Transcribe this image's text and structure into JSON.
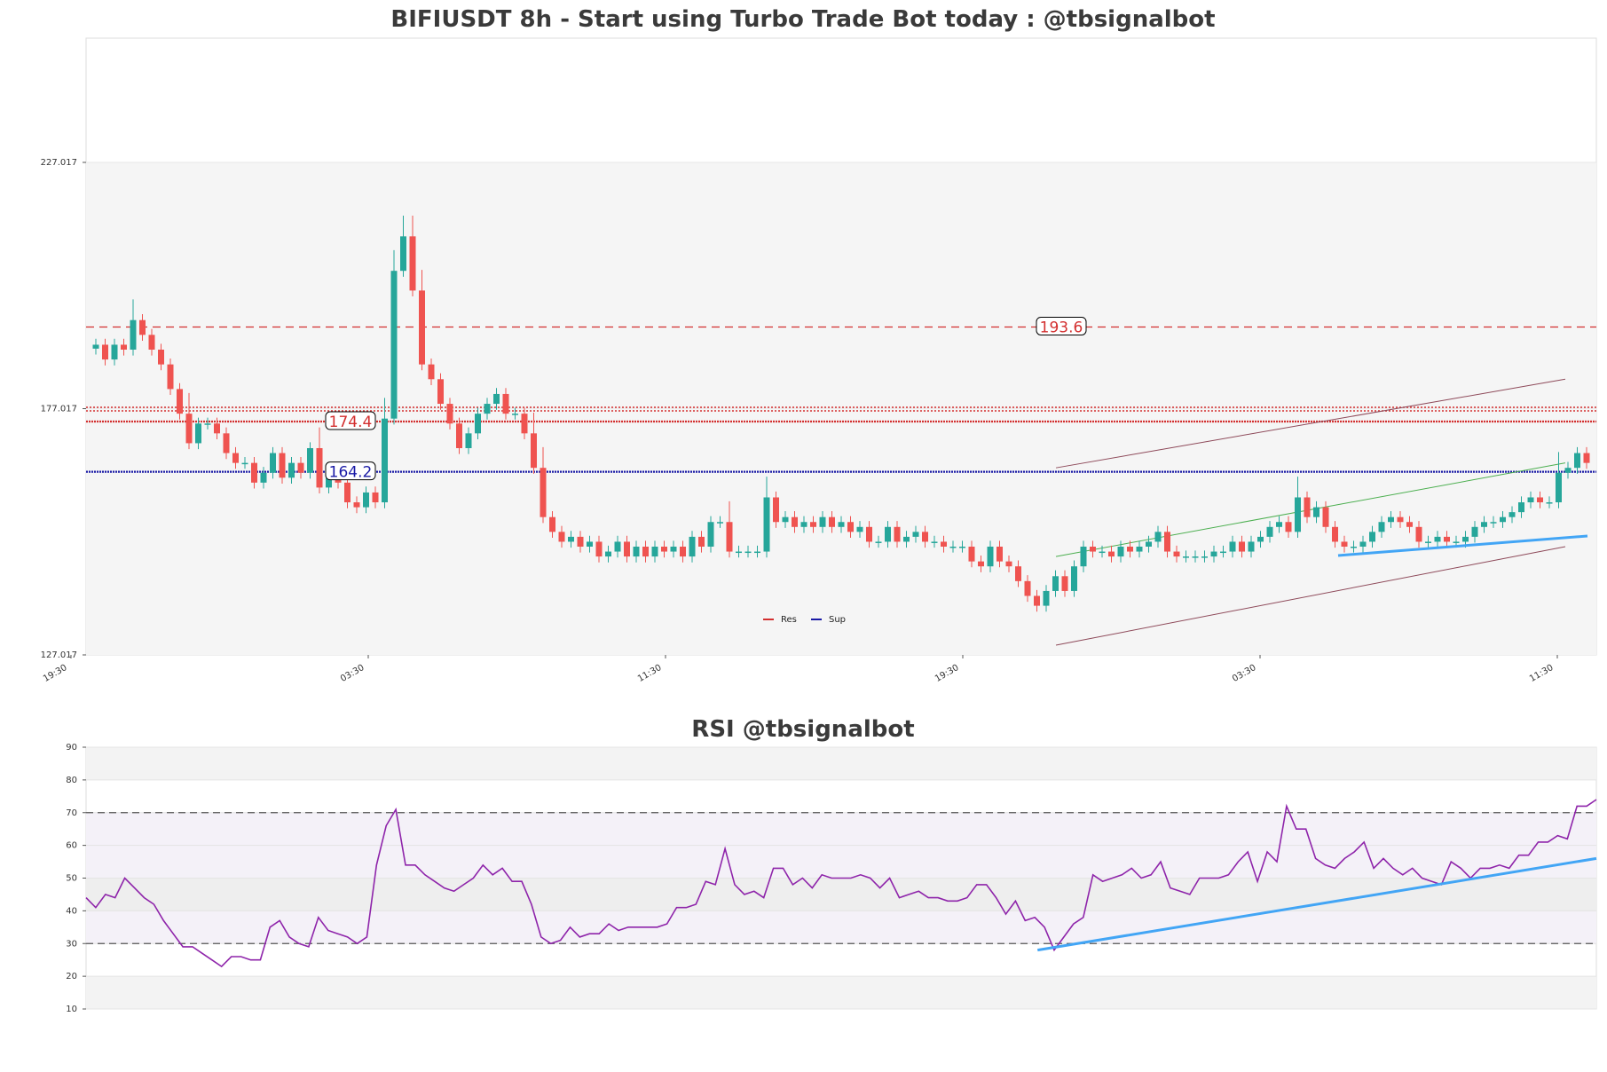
{
  "title": "BIFIUSDT 8h - Start using Turbo Trade Bot today : @tbsignalbot",
  "rsi_title": "RSI @tbsignalbot",
  "colors": {
    "up": "#26a69a",
    "down": "#ef5350",
    "res": "#d32f2f",
    "sup": "#1a1aa6",
    "rsi": "#8e24aa",
    "trend": "#42a5f5"
  },
  "chart_data": [
    {
      "type": "candlestick",
      "title": "BIFIUSDT 8h - Start using Turbo Trade Bot today : @tbsignalbot",
      "ylim": [
        127.017,
        227.017
      ],
      "y_ticks": [
        "127.017",
        "177.017",
        "227.017"
      ],
      "x_tick_labels": [
        "19:30",
        "03:30",
        "11:30",
        "19:30",
        "03:30",
        "11:30"
      ],
      "levels": [
        {
          "label": "193.6",
          "value": 193.6,
          "kind": "res"
        },
        {
          "label": "174.4",
          "value": 174.4,
          "kind": "res"
        },
        {
          "label": "164.2",
          "value": 164.2,
          "kind": "sup"
        }
      ],
      "legend": {
        "placement": "bottom-center",
        "entries": [
          "Res",
          "Sup"
        ]
      },
      "series": [
        {
          "name": "close",
          "values": [
            190,
            187,
            190,
            189,
            195,
            192,
            189,
            186,
            181,
            176,
            170,
            174,
            174,
            172,
            168,
            166,
            166,
            162,
            164,
            168,
            163,
            166,
            164,
            169,
            161,
            163,
            162,
            158,
            157,
            160,
            158,
            175,
            205,
            212,
            201,
            186,
            183,
            178,
            174,
            169,
            172,
            176,
            178,
            180,
            176,
            176,
            172,
            165,
            155,
            152,
            150,
            151,
            149,
            150,
            147,
            148,
            150,
            147,
            149,
            147,
            149,
            148,
            149,
            147,
            151,
            149,
            154,
            154,
            148,
            148,
            148,
            148,
            159,
            154,
            155,
            153,
            154,
            153,
            155,
            153,
            154,
            152,
            153,
            150,
            150,
            153,
            150,
            151,
            152,
            150,
            150,
            149,
            149,
            149,
            146,
            145,
            149,
            146,
            145,
            142,
            139,
            137,
            140,
            143,
            140,
            145,
            149,
            148,
            148,
            147,
            149,
            148,
            149,
            150,
            152,
            148,
            147,
            147,
            147,
            147,
            148,
            148,
            150,
            148,
            150,
            151,
            153,
            154,
            152,
            159,
            155,
            157,
            153,
            150,
            149,
            149,
            150,
            152,
            154,
            155,
            154,
            153,
            150,
            150,
            151,
            150,
            150,
            151,
            153,
            154,
            154,
            155,
            156,
            158,
            159,
            158,
            158,
            164,
            165,
            168,
            166
          ]
        }
      ],
      "channels": [
        {
          "name": "upper",
          "x": [
            0,
            1
          ],
          "y": [
            165,
            183
          ]
        },
        {
          "name": "middle",
          "x": [
            0,
            1
          ],
          "y": [
            147,
            166
          ]
        },
        {
          "name": "lower",
          "x": [
            0,
            1
          ],
          "y": [
            129,
            149
          ]
        }
      ]
    },
    {
      "type": "line",
      "title": "RSI @tbsignalbot",
      "ylim": [
        10,
        90
      ],
      "y_ticks": [
        "10",
        "20",
        "30",
        "40",
        "50",
        "60",
        "70",
        "80",
        "90"
      ],
      "guides": [
        30,
        70
      ],
      "series": [
        {
          "name": "RSI",
          "values": [
            44,
            41,
            45,
            44,
            50,
            47,
            44,
            42,
            37,
            33,
            29,
            29,
            27,
            25,
            23,
            26,
            26,
            25,
            25,
            35,
            37,
            32,
            30,
            29,
            38,
            34,
            33,
            32,
            30,
            32,
            54,
            66,
            71,
            54,
            54,
            51,
            49,
            47,
            46,
            48,
            50,
            54,
            51,
            53,
            49,
            49,
            42,
            32,
            30,
            31,
            35,
            32,
            33,
            33,
            36,
            34,
            35,
            35,
            35,
            35,
            36,
            41,
            41,
            42,
            49,
            48,
            59,
            48,
            45,
            46,
            44,
            53,
            53,
            48,
            50,
            47,
            51,
            50,
            50,
            50,
            51,
            50,
            47,
            50,
            44,
            45,
            46,
            44,
            44,
            43,
            43,
            44,
            48,
            48,
            44,
            39,
            43,
            37,
            38,
            35,
            28,
            32,
            36,
            38,
            51,
            49,
            50,
            51,
            53,
            50,
            51,
            55,
            47,
            46,
            45,
            50,
            50,
            50,
            51,
            55,
            58,
            49,
            58,
            55,
            72,
            65,
            65,
            56,
            54,
            53,
            56,
            58,
            61,
            53,
            56,
            53,
            51,
            53,
            50,
            49,
            48,
            55,
            53,
            50,
            53,
            53,
            54,
            53,
            57,
            57,
            61,
            61,
            63,
            62,
            72,
            72,
            74
          ]
        }
      ],
      "trend": {
        "x": [
          0.63,
          1.0
        ],
        "y": [
          28,
          56
        ]
      }
    }
  ]
}
